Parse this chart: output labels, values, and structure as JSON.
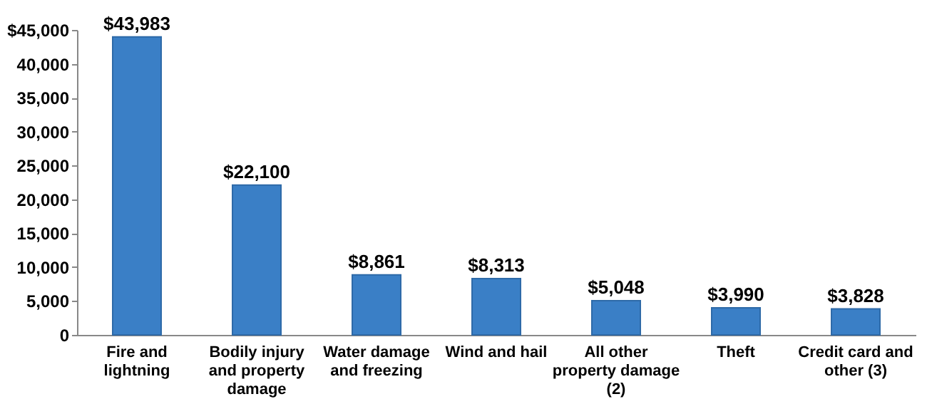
{
  "chart_data": {
    "type": "bar",
    "categories": [
      "Fire and lightning",
      "Bodily injury and property damage",
      "Water damage and freezing",
      "Wind and hail",
      "All other property damage (2)",
      "Theft",
      "Credit card and other (3)"
    ],
    "values": [
      43983,
      22100,
      8861,
      8313,
      5048,
      3990,
      3828
    ],
    "value_labels": [
      "$43,983",
      "$22,100",
      "$8,861",
      "$8,313",
      "$5,048",
      "$3,990",
      "$3,828"
    ],
    "color": "#3a7fc6",
    "ylim": [
      0,
      45000
    ],
    "yticks": [
      {
        "value": 0,
        "label": "0"
      },
      {
        "value": 5000,
        "label": "5,000"
      },
      {
        "value": 10000,
        "label": "10,000"
      },
      {
        "value": 15000,
        "label": "15,000"
      },
      {
        "value": 20000,
        "label": "20,000"
      },
      {
        "value": 25000,
        "label": "25,000"
      },
      {
        "value": 30000,
        "label": "30,000"
      },
      {
        "value": 35000,
        "label": "35,000"
      },
      {
        "value": 40000,
        "label": "40,000"
      },
      {
        "value": 45000,
        "label": "$45,000"
      }
    ],
    "grid": false
  }
}
